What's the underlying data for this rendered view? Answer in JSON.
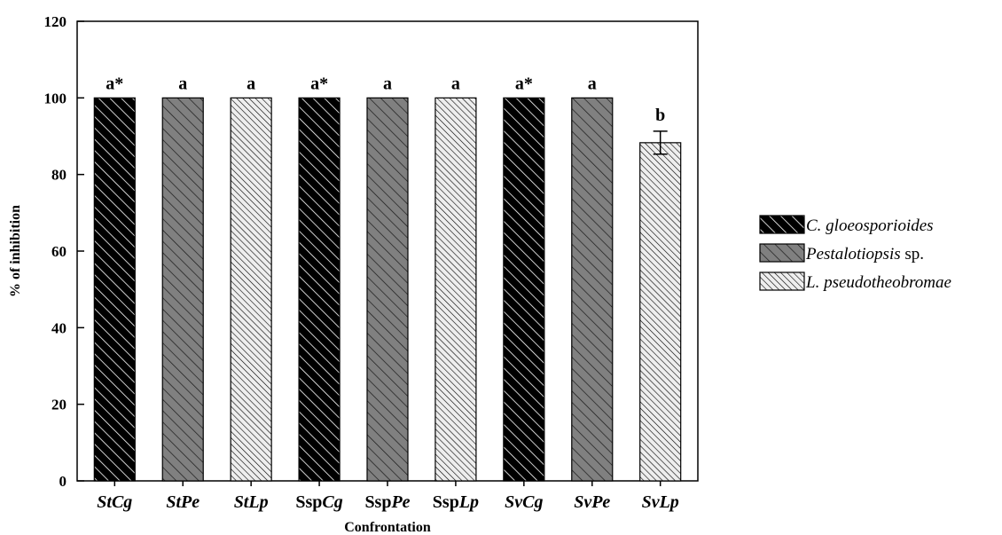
{
  "chart_data": {
    "type": "bar",
    "xlabel": "Confrontation",
    "ylabel": "% of inhibition",
    "ylim": [
      0,
      120
    ],
    "yticks": [
      0,
      20,
      40,
      60,
      80,
      100,
      120
    ],
    "grid": false,
    "legend_position": "right",
    "categories": [
      {
        "parts": [
          {
            "text": "StCg",
            "italic": true
          }
        ]
      },
      {
        "parts": [
          {
            "text": "StPe",
            "italic": true
          }
        ]
      },
      {
        "parts": [
          {
            "text": "StLp",
            "italic": true
          }
        ]
      },
      {
        "parts": [
          {
            "text": "Ssp",
            "italic": false
          },
          {
            "text": "Cg",
            "italic": true
          }
        ]
      },
      {
        "parts": [
          {
            "text": "Ssp",
            "italic": false
          },
          {
            "text": "Pe",
            "italic": true
          }
        ]
      },
      {
        "parts": [
          {
            "text": "Ssp",
            "italic": false
          },
          {
            "text": "Lp",
            "italic": true
          }
        ]
      },
      {
        "parts": [
          {
            "text": "SvCg",
            "italic": true
          }
        ]
      },
      {
        "parts": [
          {
            "text": "SvPe",
            "italic": true
          }
        ]
      },
      {
        "parts": [
          {
            "text": "SvLp",
            "italic": true
          }
        ]
      }
    ],
    "bars": [
      {
        "value": 100,
        "error": 0,
        "series": 0,
        "sig": "a*"
      },
      {
        "value": 100,
        "error": 0,
        "series": 1,
        "sig": "a"
      },
      {
        "value": 100,
        "error": 0,
        "series": 2,
        "sig": "a"
      },
      {
        "value": 100,
        "error": 0,
        "series": 0,
        "sig": "a*"
      },
      {
        "value": 100,
        "error": 0,
        "series": 1,
        "sig": "a"
      },
      {
        "value": 100,
        "error": 0,
        "series": 2,
        "sig": "a"
      },
      {
        "value": 100,
        "error": 0,
        "series": 0,
        "sig": "a*"
      },
      {
        "value": 100,
        "error": 0,
        "series": 1,
        "sig": "a"
      },
      {
        "value": 88.3,
        "error": 3.0,
        "series": 2,
        "sig": "b"
      }
    ],
    "series": [
      {
        "parts": [
          {
            "text": "C. gloeosporioides",
            "italic": true
          }
        ],
        "fill": "#000000",
        "hatch": "#ffffff"
      },
      {
        "parts": [
          {
            "text": "Pestalotiopsis",
            "italic": true
          },
          {
            "text": " sp.",
            "italic": false
          }
        ],
        "fill": "#808080",
        "hatch": "#1a1a1a"
      },
      {
        "parts": [
          {
            "text": "L. pseudotheobromae",
            "italic": true
          }
        ],
        "fill": "#e6e6e6",
        "hatch": "#000000"
      }
    ]
  }
}
